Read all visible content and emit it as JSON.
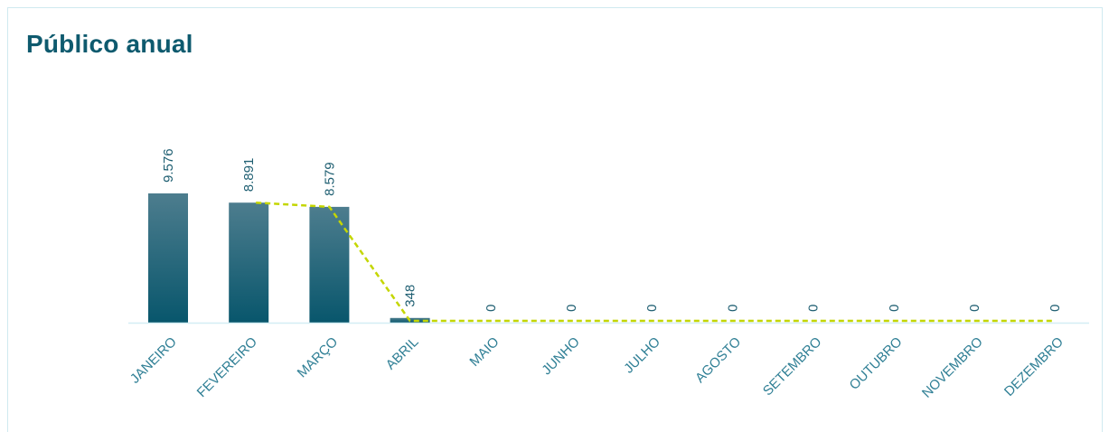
{
  "title": "Público anual",
  "colors": {
    "title": "#0e5a6e",
    "bar_top": "#4d7d8e",
    "bar_bottom": "#08566c",
    "line": "#c4d600",
    "axis": "#d3eef4",
    "value_label": "#1f5f72",
    "category_label": "#2f7f95"
  },
  "chart_data": {
    "type": "bar",
    "categories": [
      "JANEIRO",
      "FEVEREIRO",
      "MARÇO",
      "ABRIL",
      "MAIO",
      "JUNHO",
      "JULHO",
      "AGOSTO",
      "SETEMBRO",
      "OUTUBRO",
      "NOVEMBRO",
      "DEZEMBRO"
    ],
    "values": [
      9576,
      8891,
      8579,
      348,
      0,
      0,
      0,
      0,
      0,
      0,
      0,
      0
    ],
    "value_labels": [
      "9.576",
      "8.891",
      "8.579",
      "348",
      "0",
      "0",
      "0",
      "0",
      "0",
      "0",
      "0",
      "0"
    ],
    "trend_line": {
      "style": "dashed",
      "values": [
        null,
        8891,
        8579,
        0,
        0,
        0,
        0,
        0,
        0,
        0,
        0,
        0
      ]
    },
    "ylim": [
      0,
      9576
    ],
    "grid": false,
    "legend": "none"
  }
}
